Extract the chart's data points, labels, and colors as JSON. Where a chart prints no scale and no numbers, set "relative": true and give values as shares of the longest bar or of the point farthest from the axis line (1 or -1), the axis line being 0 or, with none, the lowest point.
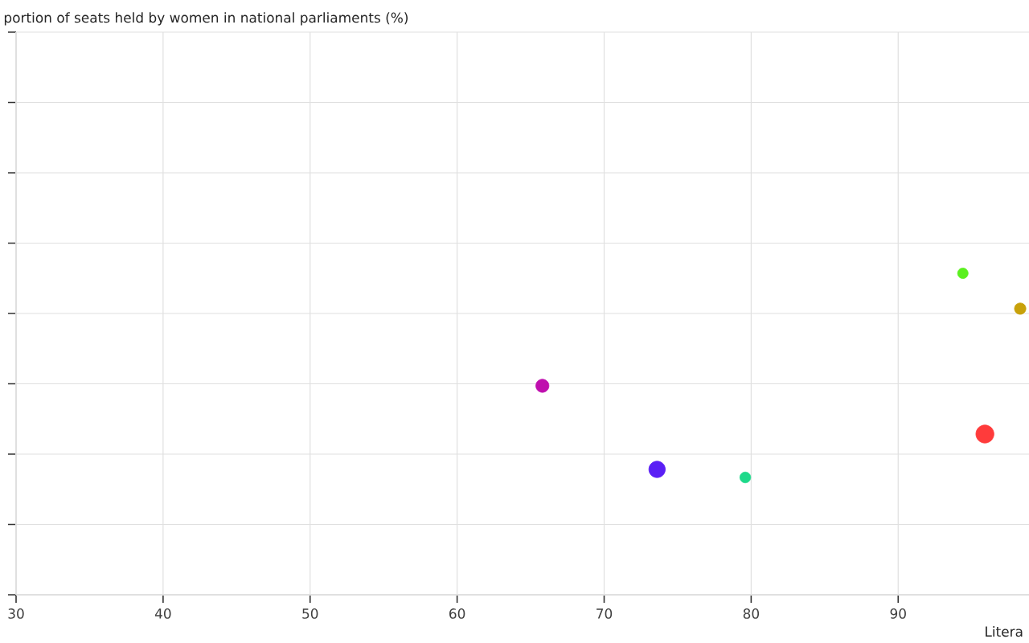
{
  "chart_data": {
    "type": "bubble",
    "relative": true,
    "xlabel": "Litera",
    "annotations": [
      "portion of seats held by women in national parliaments (%)"
    ],
    "xlim": [
      30,
      98.9
    ],
    "xticks": [
      30,
      40,
      50,
      60,
      70,
      80,
      90
    ],
    "grid": true,
    "marker": "circle",
    "x": [
      65.8,
      73.6,
      79.6,
      94.4,
      95.9,
      98.3
    ],
    "values": [
      0.65,
      0.39,
      0.365,
      1,
      0.5,
      0.89
    ],
    "sizes": [
      0.53,
      0.83,
      0.36,
      0.34,
      1,
      0.4
    ],
    "colors": [
      "#bf0fae",
      "#5a1ff5",
      "#1ed98a",
      "#5af01e",
      "#ff3b3b",
      "#c8a10a"
    ]
  }
}
